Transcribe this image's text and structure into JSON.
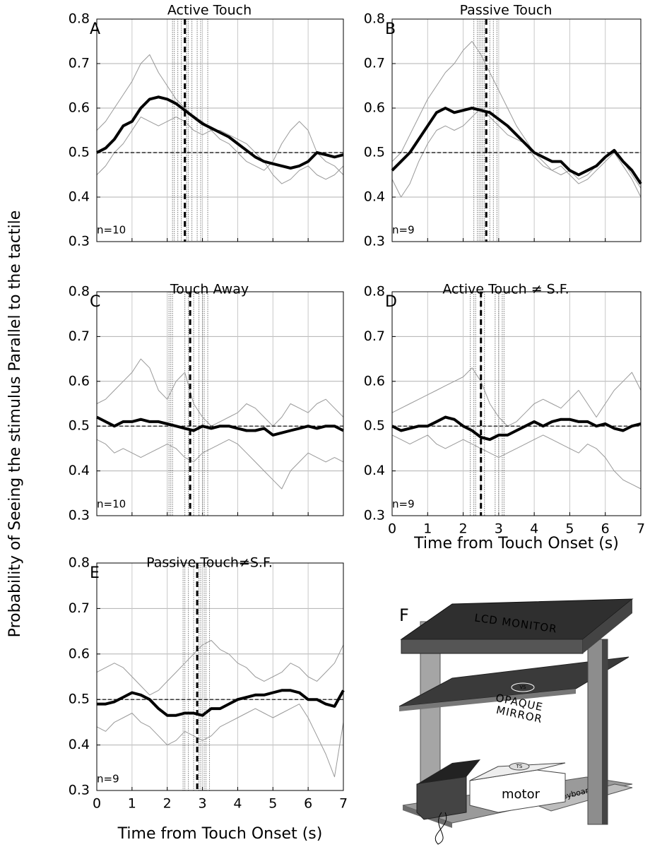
{
  "figure": {
    "y_label": "Probability of Seeing the stimulus Parallel to the tactile"
  },
  "chart_data": [
    {
      "type": "line",
      "panel": "A",
      "title": "Active Touch",
      "annotation": "n=10",
      "x": [
        0,
        0.25,
        0.5,
        0.75,
        1,
        1.25,
        1.5,
        1.75,
        2,
        2.25,
        2.5,
        2.75,
        3,
        3.25,
        3.5,
        3.75,
        4,
        4.25,
        4.5,
        4.75,
        5,
        5.25,
        5.5,
        5.75,
        6,
        6.25,
        6.5,
        6.75,
        7
      ],
      "series": [
        {
          "color": "#999999",
          "values": [
            0.55,
            0.57,
            0.6,
            0.63,
            0.66,
            0.7,
            0.72,
            0.68,
            0.65,
            0.62,
            0.6,
            0.58,
            0.57,
            0.55,
            0.53,
            0.52,
            0.5,
            0.48,
            0.47,
            0.46,
            0.48,
            0.52,
            0.55,
            0.57,
            0.55,
            0.5,
            0.48,
            0.47,
            0.45
          ]
        },
        {
          "color": "#999999",
          "values": [
            0.45,
            0.47,
            0.5,
            0.52,
            0.55,
            0.58,
            0.57,
            0.56,
            0.57,
            0.58,
            0.57,
            0.55,
            0.54,
            0.55,
            0.55,
            0.54,
            0.53,
            0.52,
            0.5,
            0.48,
            0.45,
            0.43,
            0.44,
            0.46,
            0.47,
            0.45,
            0.44,
            0.45,
            0.47
          ]
        },
        {
          "color": "#000000",
          "values": [
            0.5,
            0.51,
            0.53,
            0.56,
            0.57,
            0.6,
            0.62,
            0.625,
            0.62,
            0.61,
            0.595,
            0.58,
            0.565,
            0.555,
            0.545,
            0.535,
            0.52,
            0.505,
            0.49,
            0.48,
            0.475,
            0.47,
            0.465,
            0.47,
            0.48,
            0.5,
            0.495,
            0.49,
            0.495
          ]
        }
      ],
      "xlim": [
        0,
        7
      ],
      "ylim": [
        0.3,
        0.8
      ],
      "xticks": [
        0,
        1,
        2,
        3,
        4,
        5,
        6,
        7
      ],
      "yticks": [
        0.3,
        0.4,
        0.5,
        0.6,
        0.7,
        0.8
      ],
      "show_xtick_labels": false,
      "grid": true,
      "reference": 0.5,
      "touch_mean": 2.5,
      "touch_times": [
        2.15,
        2.2,
        2.3,
        2.4,
        2.55,
        2.6,
        2.7,
        2.85,
        2.95,
        3.15
      ]
    },
    {
      "type": "line",
      "panel": "B",
      "title": "Passive Touch",
      "annotation": "n=9",
      "x": [
        0,
        0.25,
        0.5,
        0.75,
        1,
        1.25,
        1.5,
        1.75,
        2,
        2.25,
        2.5,
        2.75,
        3,
        3.25,
        3.5,
        3.75,
        4,
        4.25,
        4.5,
        4.75,
        5,
        5.25,
        5.5,
        5.75,
        6,
        6.25,
        6.5,
        6.75,
        7
      ],
      "series": [
        {
          "color": "#999999",
          "values": [
            0.48,
            0.5,
            0.54,
            0.58,
            0.62,
            0.65,
            0.68,
            0.7,
            0.73,
            0.75,
            0.72,
            0.68,
            0.64,
            0.6,
            0.56,
            0.53,
            0.5,
            0.48,
            0.46,
            0.47,
            0.45,
            0.43,
            0.44,
            0.46,
            0.48,
            0.5,
            0.47,
            0.44,
            0.4
          ]
        },
        {
          "color": "#999999",
          "values": [
            0.44,
            0.4,
            0.43,
            0.48,
            0.52,
            0.55,
            0.56,
            0.55,
            0.56,
            0.58,
            0.6,
            0.58,
            0.56,
            0.54,
            0.53,
            0.52,
            0.49,
            0.47,
            0.46,
            0.45,
            0.46,
            0.44,
            0.45,
            0.47,
            0.49,
            0.5,
            0.48,
            0.45,
            0.42
          ]
        },
        {
          "color": "#000000",
          "values": [
            0.46,
            0.48,
            0.5,
            0.53,
            0.56,
            0.59,
            0.6,
            0.59,
            0.595,
            0.6,
            0.595,
            0.59,
            0.575,
            0.56,
            0.54,
            0.52,
            0.5,
            0.49,
            0.48,
            0.48,
            0.46,
            0.45,
            0.46,
            0.47,
            0.49,
            0.505,
            0.48,
            0.46,
            0.43
          ]
        }
      ],
      "xlim": [
        0,
        7
      ],
      "ylim": [
        0.3,
        0.8
      ],
      "xticks": [
        0,
        1,
        2,
        3,
        4,
        5,
        6,
        7
      ],
      "yticks": [
        0.3,
        0.4,
        0.5,
        0.6,
        0.7,
        0.8
      ],
      "show_xtick_labels": false,
      "grid": true,
      "reference": 0.5,
      "touch_mean": 2.65,
      "touch_times": [
        2.3,
        2.4,
        2.45,
        2.5,
        2.55,
        2.6,
        2.75,
        2.85,
        2.95
      ]
    },
    {
      "type": "line",
      "panel": "C",
      "title": "Touch Away",
      "annotation": "n=10",
      "x": [
        0,
        0.25,
        0.5,
        0.75,
        1,
        1.25,
        1.5,
        1.75,
        2,
        2.25,
        2.5,
        2.75,
        3,
        3.25,
        3.5,
        3.75,
        4,
        4.25,
        4.5,
        4.75,
        5,
        5.25,
        5.5,
        5.75,
        6,
        6.25,
        6.5,
        6.75,
        7
      ],
      "series": [
        {
          "color": "#999999",
          "values": [
            0.55,
            0.56,
            0.58,
            0.6,
            0.62,
            0.65,
            0.63,
            0.58,
            0.56,
            0.6,
            0.62,
            0.55,
            0.52,
            0.5,
            0.51,
            0.52,
            0.53,
            0.55,
            0.54,
            0.52,
            0.5,
            0.52,
            0.55,
            0.54,
            0.53,
            0.55,
            0.56,
            0.54,
            0.52
          ]
        },
        {
          "color": "#999999",
          "values": [
            0.47,
            0.46,
            0.44,
            0.45,
            0.44,
            0.43,
            0.44,
            0.45,
            0.46,
            0.45,
            0.43,
            0.42,
            0.44,
            0.45,
            0.46,
            0.47,
            0.46,
            0.44,
            0.42,
            0.4,
            0.38,
            0.36,
            0.4,
            0.42,
            0.44,
            0.43,
            0.42,
            0.43,
            0.42
          ]
        },
        {
          "color": "#000000",
          "values": [
            0.52,
            0.51,
            0.5,
            0.51,
            0.51,
            0.515,
            0.51,
            0.51,
            0.505,
            0.5,
            0.495,
            0.49,
            0.5,
            0.495,
            0.5,
            0.5,
            0.495,
            0.49,
            0.49,
            0.495,
            0.48,
            0.485,
            0.49,
            0.495,
            0.5,
            0.495,
            0.5,
            0.5,
            0.49
          ]
        }
      ],
      "xlim": [
        0,
        7
      ],
      "ylim": [
        0.3,
        0.8
      ],
      "xticks": [
        0,
        1,
        2,
        3,
        4,
        5,
        6,
        7
      ],
      "yticks": [
        0.3,
        0.4,
        0.5,
        0.6,
        0.7,
        0.8
      ],
      "show_xtick_labels": false,
      "grid": true,
      "reference": 0.5,
      "touch_mean": 2.65,
      "touch_times": [
        2.05,
        2.1,
        2.15,
        2.5,
        2.6,
        2.75,
        2.9,
        3.0,
        3.05,
        3.15
      ]
    },
    {
      "type": "line",
      "panel": "D",
      "title": "Active Touch ≠ S.F.",
      "annotation": "n=9",
      "x_label": "Time from Touch Onset (s)",
      "x": [
        0,
        0.25,
        0.5,
        0.75,
        1,
        1.25,
        1.5,
        1.75,
        2,
        2.25,
        2.5,
        2.75,
        3,
        3.25,
        3.5,
        3.75,
        4,
        4.25,
        4.5,
        4.75,
        5,
        5.25,
        5.5,
        5.75,
        6,
        6.25,
        6.5,
        6.75,
        7
      ],
      "series": [
        {
          "color": "#999999",
          "values": [
            0.53,
            0.54,
            0.55,
            0.56,
            0.57,
            0.58,
            0.59,
            0.6,
            0.61,
            0.63,
            0.6,
            0.55,
            0.52,
            0.5,
            0.51,
            0.53,
            0.55,
            0.56,
            0.55,
            0.54,
            0.56,
            0.58,
            0.55,
            0.52,
            0.55,
            0.58,
            0.6,
            0.62,
            0.58
          ]
        },
        {
          "color": "#999999",
          "values": [
            0.48,
            0.47,
            0.46,
            0.47,
            0.48,
            0.46,
            0.45,
            0.46,
            0.47,
            0.46,
            0.45,
            0.44,
            0.43,
            0.44,
            0.45,
            0.46,
            0.47,
            0.48,
            0.47,
            0.46,
            0.45,
            0.44,
            0.46,
            0.45,
            0.43,
            0.4,
            0.38,
            0.37,
            0.36
          ]
        },
        {
          "color": "#000000",
          "values": [
            0.5,
            0.49,
            0.495,
            0.5,
            0.5,
            0.51,
            0.52,
            0.515,
            0.5,
            0.49,
            0.475,
            0.47,
            0.48,
            0.48,
            0.49,
            0.5,
            0.51,
            0.5,
            0.51,
            0.515,
            0.515,
            0.51,
            0.51,
            0.5,
            0.505,
            0.495,
            0.49,
            0.5,
            0.505
          ]
        }
      ],
      "xlim": [
        0,
        7
      ],
      "ylim": [
        0.3,
        0.8
      ],
      "xticks": [
        0,
        1,
        2,
        3,
        4,
        5,
        6,
        7
      ],
      "yticks": [
        0.3,
        0.4,
        0.5,
        0.6,
        0.7,
        0.8
      ],
      "show_xtick_labels": true,
      "grid": true,
      "reference": 0.5,
      "touch_mean": 2.5,
      "touch_times": [
        2.2,
        2.3,
        2.35,
        2.5,
        2.6,
        2.9,
        3.0,
        3.1,
        3.15
      ]
    },
    {
      "type": "line",
      "panel": "E",
      "title": "Passive Touch≠S.F.",
      "annotation": "n=9",
      "x_label": "Time from Touch Onset (s)",
      "x": [
        0,
        0.25,
        0.5,
        0.75,
        1,
        1.25,
        1.5,
        1.75,
        2,
        2.25,
        2.5,
        2.75,
        3,
        3.25,
        3.5,
        3.75,
        4,
        4.25,
        4.5,
        4.75,
        5,
        5.25,
        5.5,
        5.75,
        6,
        6.25,
        6.5,
        6.75,
        7
      ],
      "series": [
        {
          "color": "#999999",
          "values": [
            0.56,
            0.57,
            0.58,
            0.57,
            0.55,
            0.53,
            0.51,
            0.52,
            0.54,
            0.56,
            0.58,
            0.6,
            0.62,
            0.63,
            0.61,
            0.6,
            0.58,
            0.57,
            0.55,
            0.54,
            0.55,
            0.56,
            0.58,
            0.57,
            0.55,
            0.54,
            0.56,
            0.58,
            0.62
          ]
        },
        {
          "color": "#999999",
          "values": [
            0.44,
            0.43,
            0.45,
            0.46,
            0.47,
            0.45,
            0.44,
            0.42,
            0.4,
            0.41,
            0.43,
            0.42,
            0.41,
            0.42,
            0.44,
            0.45,
            0.46,
            0.47,
            0.48,
            0.47,
            0.46,
            0.47,
            0.48,
            0.49,
            0.46,
            0.42,
            0.38,
            0.33,
            0.45
          ]
        },
        {
          "color": "#000000",
          "values": [
            0.49,
            0.49,
            0.495,
            0.505,
            0.515,
            0.51,
            0.5,
            0.48,
            0.465,
            0.465,
            0.47,
            0.47,
            0.465,
            0.48,
            0.48,
            0.49,
            0.5,
            0.505,
            0.51,
            0.51,
            0.515,
            0.52,
            0.52,
            0.515,
            0.5,
            0.5,
            0.49,
            0.485,
            0.52
          ]
        }
      ],
      "xlim": [
        0,
        7
      ],
      "ylim": [
        0.3,
        0.8
      ],
      "xticks": [
        0,
        1,
        2,
        3,
        4,
        5,
        6,
        7
      ],
      "yticks": [
        0.3,
        0.4,
        0.5,
        0.6,
        0.7,
        0.8
      ],
      "show_xtick_labels": true,
      "grid": true,
      "reference": 0.5,
      "touch_mean": 2.85,
      "touch_times": [
        2.45,
        2.5,
        2.6,
        2.75,
        2.9,
        2.95,
        3.05,
        3.1,
        3.2
      ]
    }
  ],
  "diagram": {
    "label": "F",
    "monitor": "LCD MONITOR",
    "mirror_lines": [
      "OPAQUE",
      "MIRROR"
    ],
    "vs": "VS",
    "ts": "TS",
    "motor": "motor",
    "keyboard": "keyboard"
  }
}
